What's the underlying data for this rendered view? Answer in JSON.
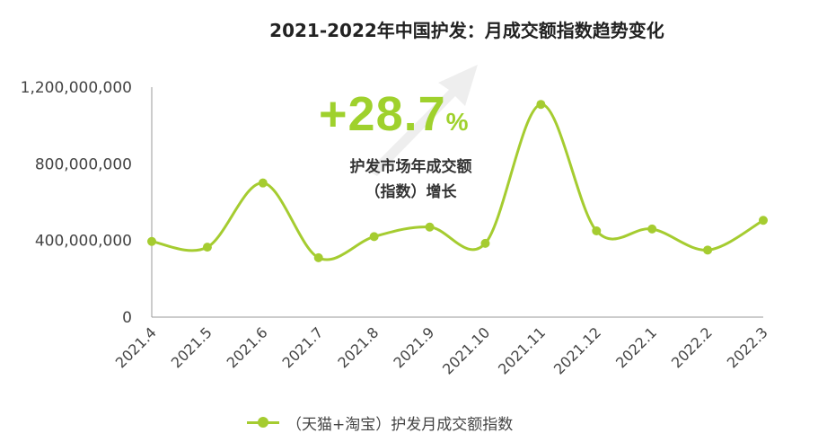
{
  "title": "2021-2022年中国护发：月成交额指数趋势变化",
  "annotation": {
    "value": "+28.7",
    "percent_sign": "%",
    "line1": "护发市场年成交额",
    "line2": "（指数）增长"
  },
  "legend": {
    "label": "（天猫+淘宝）护发月成交额指数"
  },
  "colors": {
    "series": "#a5cc30",
    "annotation": "#9fd12d",
    "axis": "#999999",
    "arrow": "#eeeeee"
  },
  "chart_data": {
    "type": "line",
    "title": "2021-2022年中国护发：月成交额指数趋势变化",
    "xlabel": "",
    "ylabel": "",
    "categories": [
      "2021.4",
      "2021.5",
      "2021.6",
      "2021.7",
      "2021.8",
      "2021.9",
      "2021.10",
      "2021.11",
      "2021.12",
      "2022.1",
      "2022.2",
      "2022.3"
    ],
    "series": [
      {
        "name": "（天猫+淘宝）护发月成交额指数",
        "values": [
          395000000,
          365000000,
          700000000,
          310000000,
          420000000,
          470000000,
          385000000,
          1110000000,
          450000000,
          460000000,
          350000000,
          505000000
        ]
      }
    ],
    "ylim": [
      0,
      1200000000
    ],
    "yticks": [
      0,
      400000000,
      800000000,
      1200000000
    ],
    "ytick_labels": [
      "0",
      "400,000,000",
      "800,000,000",
      "1,200,000,000"
    ],
    "grid": false,
    "legend_position": "bottom"
  }
}
